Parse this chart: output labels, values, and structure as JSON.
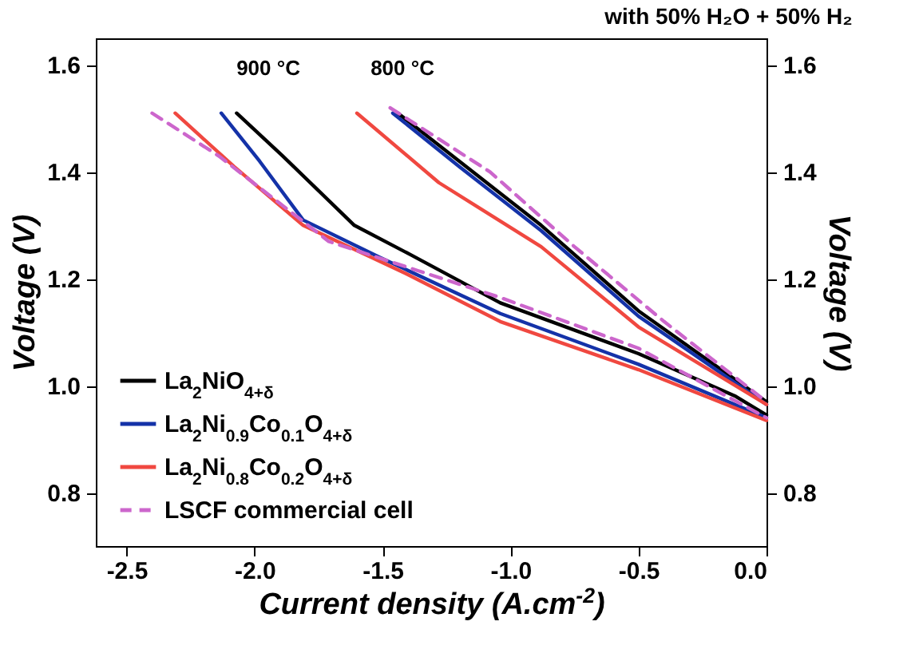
{
  "chart_data": {
    "type": "line",
    "title": "with 50% H₂O + 50% H₂",
    "xlabel": "Current density (A.cm$^{-2}$)",
    "ylabel": "Voltage (V)",
    "y2label": "Voltage (V)",
    "xlim": [
      -2.62,
      0
    ],
    "xticks": [
      -2.5,
      {
        "value": -2,
        "label": "-2.0"
      },
      -1.5,
      {
        "value": -1,
        "label": "-1.0"
      },
      -0.5,
      {
        "value": 0,
        "label": "0.0"
      }
    ],
    "ylim": [
      0.7,
      1.65
    ],
    "yticks": [
      0.8,
      {
        "value": 1,
        "label": "1.0"
      },
      1.2,
      1.4,
      1.6
    ],
    "y2lim": [
      0.7,
      1.65
    ],
    "y2ticks": [
      0.8,
      {
        "value": 1,
        "label": "1.0"
      },
      1.2,
      1.4,
      1.6
    ],
    "legend": "bottom left",
    "grid": false,
    "annotations": [
      "900 °C",
      "800 °C"
    ],
    "series": [
      {
        "name": "La$_{2}$NiO$_{4+δ}$",
        "color": "#000000",
        "line_style": "solid",
        "x": [
          -2.07,
          -1.89,
          -1.61,
          -1.39,
          -1.04,
          -0.5,
          -0.12,
          0
        ],
        "values": [
          1.51,
          1.43,
          1.3,
          1.245,
          1.155,
          1.06,
          0.98,
          0.945
        ]
      },
      {
        "color": "#000000",
        "line_style": "solid",
        "x": [
          -1.44,
          -1.2,
          -0.88,
          -0.5,
          0
        ],
        "values": [
          1.51,
          1.42,
          1.3,
          1.14,
          0.97
        ]
      },
      {
        "name": "La$_{2}$Ni$_{0.9}$Co$_{0.1}$O$_{4+δ}$",
        "color": "#1432a8",
        "line_style": "solid",
        "x": [
          -2.13,
          -1.98,
          -1.81,
          -1.51,
          -1.04,
          -0.5,
          0
        ],
        "values": [
          1.51,
          1.42,
          1.31,
          1.24,
          1.135,
          1.04,
          0.94
        ]
      },
      {
        "color": "#1432a8",
        "line_style": "solid",
        "x": [
          -1.46,
          -1.2,
          -0.88,
          -0.5,
          0
        ],
        "values": [
          1.51,
          1.41,
          1.29,
          1.13,
          0.965
        ]
      },
      {
        "name": "La$_{2}$Ni$_{0.8}$Co$_{0.2}$O$_{4+δ}$",
        "color": "#f04840",
        "line_style": "solid",
        "x": [
          -2.31,
          -2.08,
          -1.81,
          -1.41,
          -1.04,
          -0.5,
          0
        ],
        "values": [
          1.51,
          1.41,
          1.3,
          1.21,
          1.12,
          1.03,
          0.935
        ]
      },
      {
        "color": "#f04840",
        "line_style": "solid",
        "x": [
          -1.6,
          -1.28,
          -0.88,
          -0.5,
          0
        ],
        "values": [
          1.51,
          1.38,
          1.26,
          1.11,
          0.965
        ]
      },
      {
        "name": "LSCF commercial cell",
        "color": "#cc66cc",
        "line_style": "dashed",
        "x": [
          -2.4,
          -2.14,
          -1.71,
          -1.36,
          -1.04,
          -0.5,
          0
        ],
        "values": [
          1.51,
          1.43,
          1.27,
          1.215,
          1.165,
          1.07,
          0.94
        ]
      },
      {
        "color": "#cc66cc",
        "line_style": "dashed",
        "x": [
          -1.47,
          -1.08,
          -0.75,
          -0.4,
          0
        ],
        "values": [
          1.52,
          1.4,
          1.26,
          1.12,
          0.97
        ]
      }
    ]
  }
}
